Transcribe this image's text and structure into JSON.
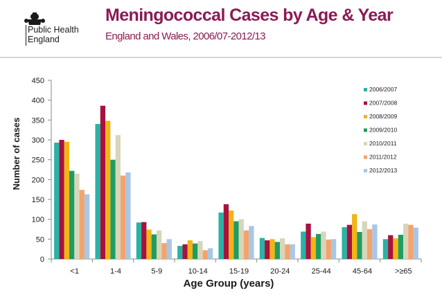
{
  "header": {
    "org_line1": "Public Health",
    "org_line2": "England"
  },
  "colors": {
    "title": "#8a1b55",
    "series": [
      "#2ab2a5",
      "#a8123e",
      "#f2b417",
      "#1f9c62",
      "#d8d5bb",
      "#f4a36a",
      "#a9c6e6"
    ]
  },
  "chart_data": {
    "type": "bar",
    "title": "Meningococcal Cases by Age & Year",
    "subtitle": "England and Wales, 2006/07-2012/13",
    "xlabel": "Age Group (years)",
    "ylabel": "Number of cases",
    "ylim": [
      0,
      450
    ],
    "yticks": [
      0,
      50,
      100,
      150,
      200,
      250,
      300,
      350,
      400,
      450
    ],
    "grid": false,
    "legend_position": "right",
    "categories": [
      "<1",
      "1-4",
      "5-9",
      "10-14",
      "15-19",
      "20-24",
      "25-44",
      "45-64",
      ">=65"
    ],
    "category_display": [
      "<1",
      "1-4",
      "5-9",
      "10-14",
      "15-19",
      "20-24",
      "25-44",
      "45-64",
      ">≥65"
    ],
    "series": [
      {
        "name": "2006/2007",
        "values": [
          293,
          340,
          92,
          33,
          117,
          53,
          69,
          80,
          50
        ]
      },
      {
        "name": "2007/2008",
        "values": [
          300,
          386,
          93,
          37,
          138,
          47,
          89,
          86,
          60
        ]
      },
      {
        "name": "2008/2009",
        "values": [
          295,
          348,
          74,
          47,
          122,
          50,
          55,
          113,
          52
        ]
      },
      {
        "name": "2009/2010",
        "values": [
          222,
          250,
          62,
          39,
          95,
          43,
          63,
          68,
          61
        ]
      },
      {
        "name": "2010/2011",
        "values": [
          215,
          312,
          72,
          45,
          100,
          52,
          69,
          95,
          89
        ]
      },
      {
        "name": "2011/2012",
        "values": [
          174,
          210,
          40,
          22,
          72,
          37,
          49,
          75,
          86
        ]
      },
      {
        "name": "2012/2013",
        "values": [
          163,
          218,
          50,
          27,
          83,
          37,
          50,
          87,
          79
        ]
      }
    ]
  }
}
